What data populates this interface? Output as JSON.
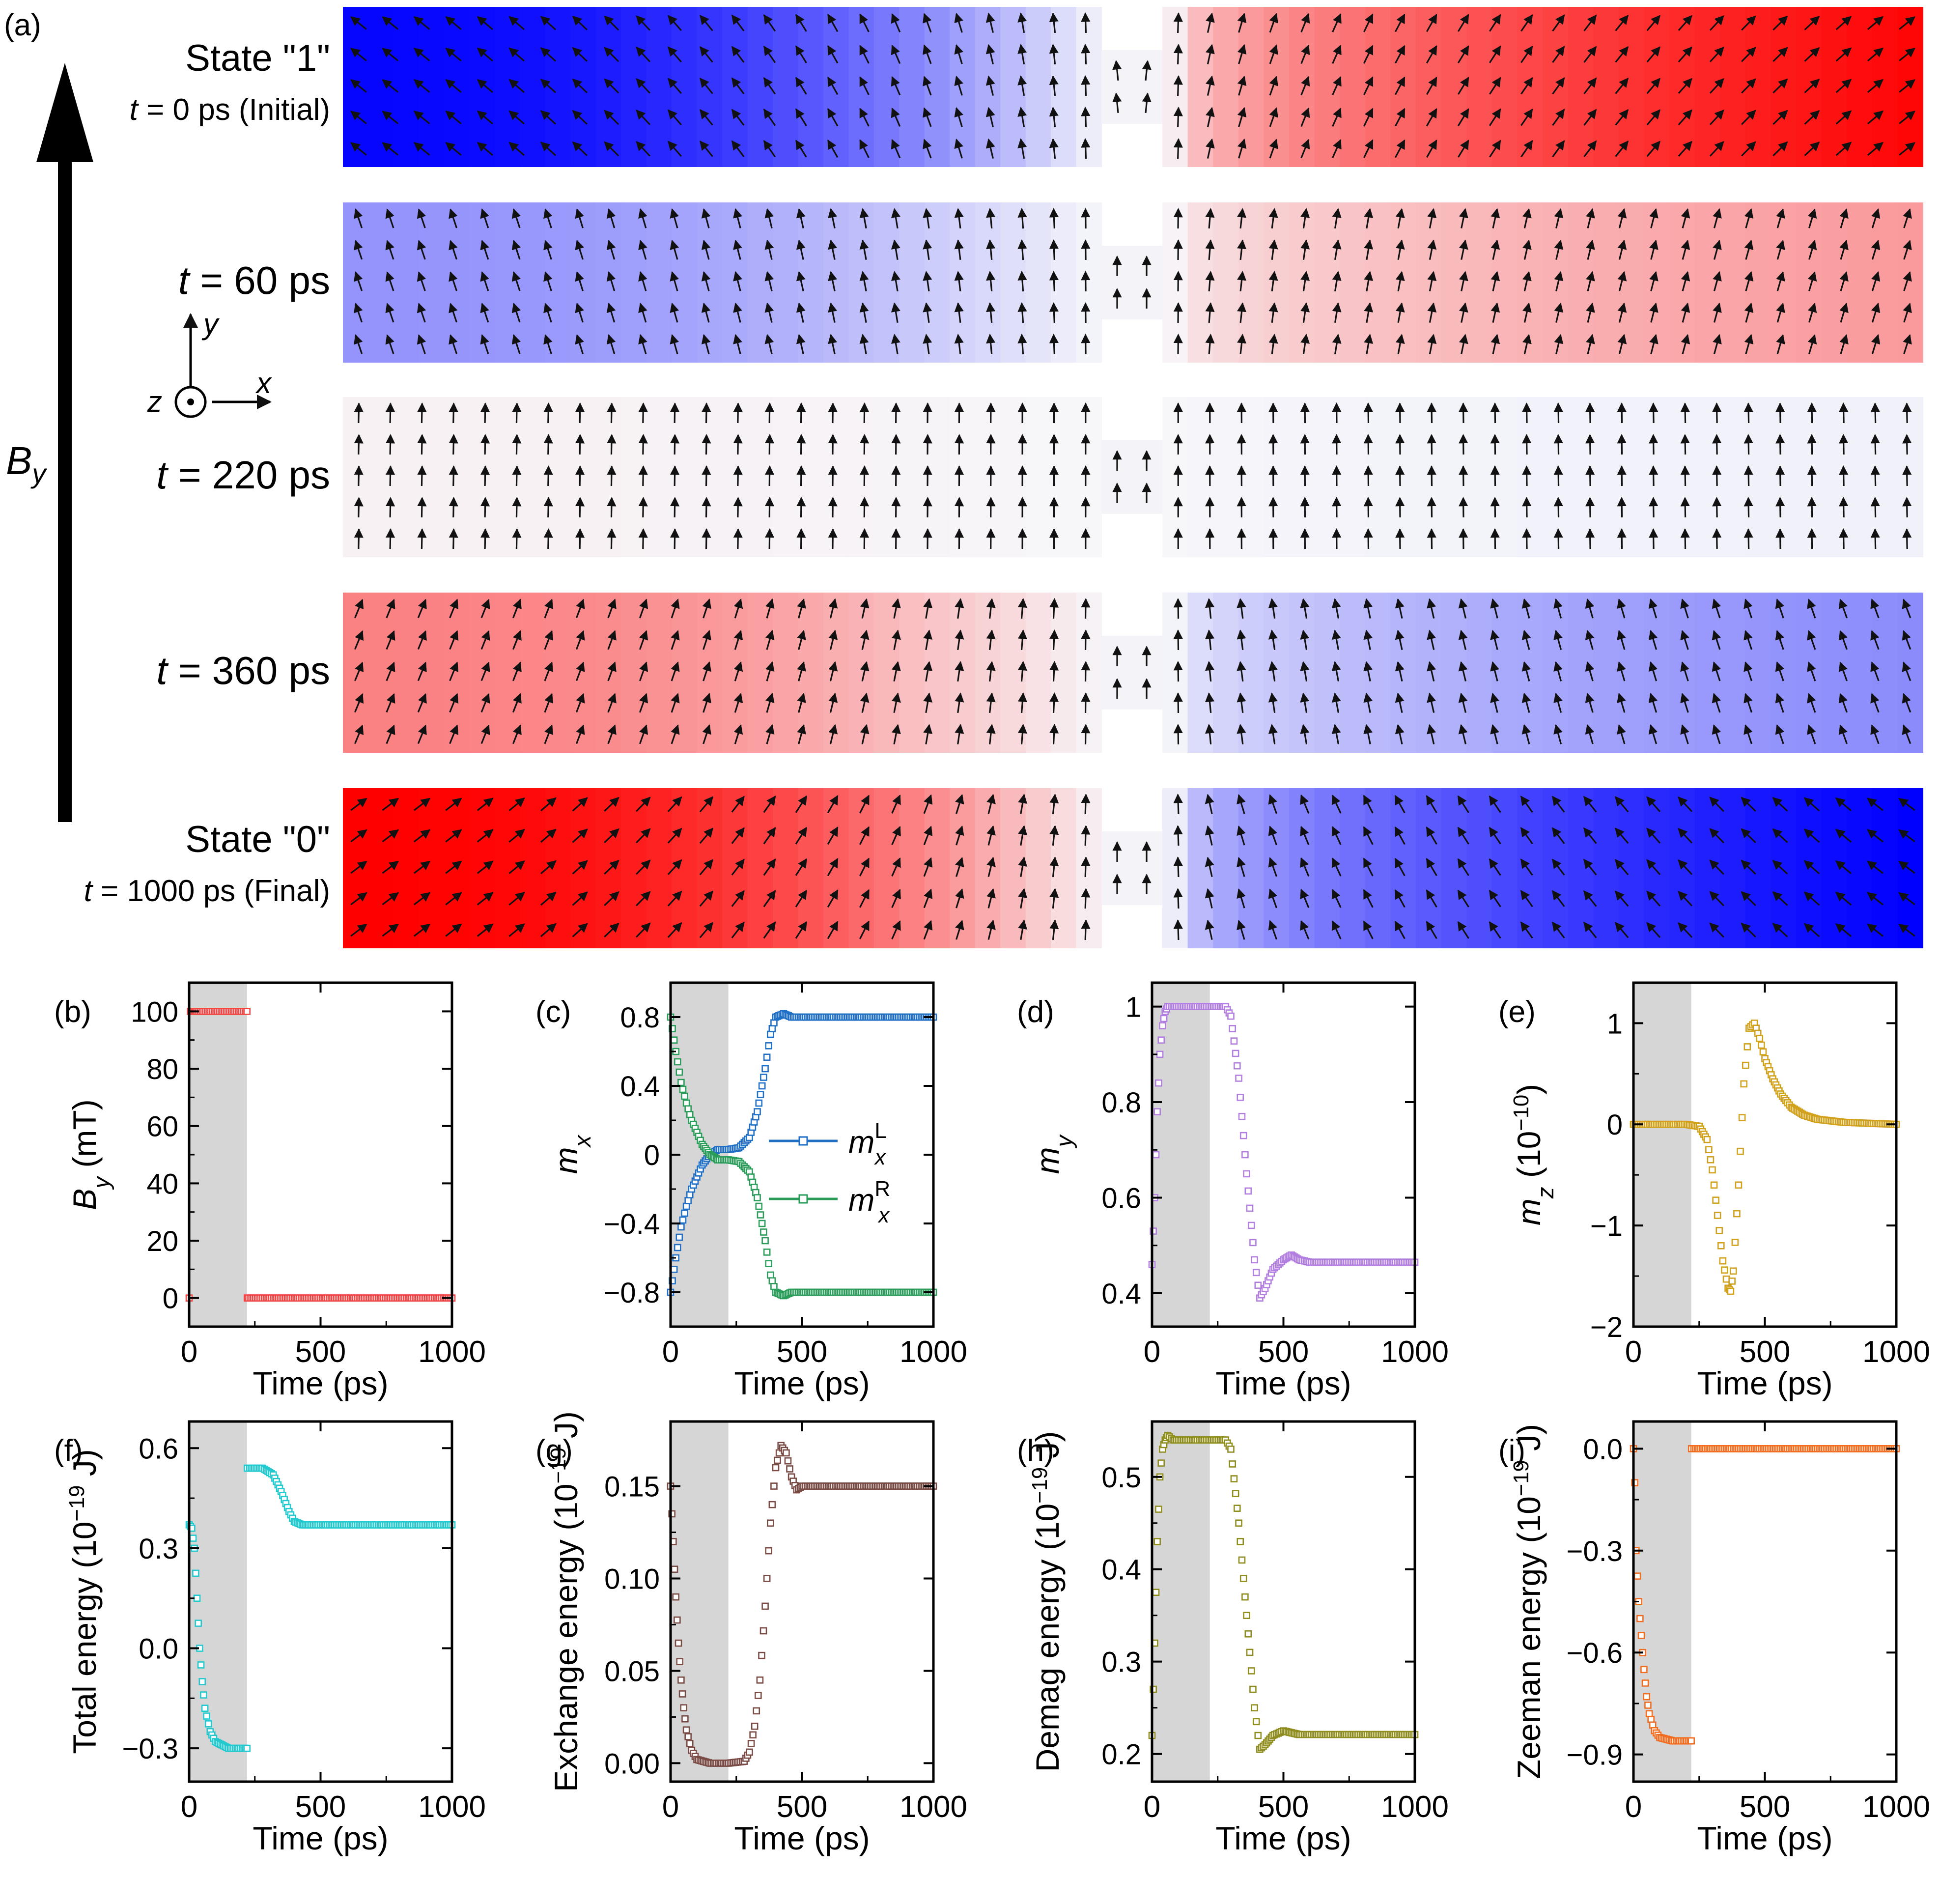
{
  "panel_a": {
    "label": "(a)",
    "field_label": "B",
    "field_sub": "y",
    "axes": {
      "x": "x",
      "y": "y",
      "z": "z"
    },
    "colors": {
      "neg": "#0000ff",
      "zero": "#f7f7fa",
      "pos": "#ff0000"
    },
    "rows": [
      {
        "title": "State \"1\"",
        "time_pre": "t",
        "time_post": " = 0 ps (Initial)",
        "mx_left": -0.78,
        "mx_right": 0.78,
        "neck_tilt": 0.1
      },
      {
        "title": "",
        "time_pre": "t",
        "time_post": " = 60 ps",
        "mx_left": -0.32,
        "mx_right": 0.3,
        "neck_tilt": 0.0
      },
      {
        "title": "",
        "time_pre": "t",
        "time_post": " = 220 ps",
        "mx_left": 0.02,
        "mx_right": -0.02,
        "neck_tilt": 0.0
      },
      {
        "title": "",
        "time_pre": "t",
        "time_post": " = 360 ps",
        "mx_left": 0.38,
        "mx_right": -0.35,
        "neck_tilt": 0.0
      },
      {
        "title": "State \"0\"",
        "time_pre": "t",
        "time_post": " = 1000 ps (Final)",
        "mx_left": 0.8,
        "mx_right": -0.8,
        "neck_tilt": 0.0
      }
    ]
  },
  "chart_data": [
    {
      "id": "b",
      "label": "(b)",
      "type": "scatter",
      "xlabel": "Time (ps)",
      "ylabel_parts": [
        [
          "B",
          "i"
        ],
        [
          "y",
          "sub-i"
        ],
        [
          " (mT)",
          ""
        ]
      ],
      "xlim": [
        0,
        1000
      ],
      "ylim": [
        -10,
        110
      ],
      "xticks": [
        0,
        500,
        1000
      ],
      "yticks": [
        0,
        20,
        40,
        60,
        80,
        100
      ],
      "shade": [
        0,
        220
      ],
      "color": "#f04646",
      "series": [
        {
          "name": "B_y",
          "x": [
            0,
            5,
            10,
            15,
            20,
            25,
            30,
            200,
            215,
            220,
            221,
            225,
            300,
            400,
            500,
            600,
            700,
            800,
            900,
            1000
          ],
          "y": [
            0,
            100,
            100,
            100,
            100,
            100,
            100,
            100,
            100,
            100,
            0,
            0,
            0,
            0,
            0,
            0,
            0,
            0,
            0,
            0
          ]
        }
      ]
    },
    {
      "id": "c",
      "label": "(c)",
      "type": "scatter",
      "xlabel": "Time (ps)",
      "ylabel_parts": [
        [
          "m",
          "i"
        ],
        [
          "x",
          "sub-i"
        ]
      ],
      "xlim": [
        0,
        1000
      ],
      "ylim": [
        -1.0,
        1.0
      ],
      "xticks": [
        0,
        500,
        1000
      ],
      "yticks": [
        -0.8,
        -0.4,
        0.0,
        0.4,
        0.8
      ],
      "shade": [
        0,
        220
      ],
      "legend": [
        {
          "sym": "m",
          "sup": "L",
          "sub": "x",
          "color": "#1f6fc6"
        },
        {
          "sym": "m",
          "sup": "R",
          "sub": "x",
          "color": "#2a9d5a"
        }
      ],
      "series": [
        {
          "name": "mxL",
          "color": "#1f6fc6",
          "x": [
            0,
            20,
            40,
            60,
            80,
            100,
            120,
            150,
            180,
            220,
            260,
            300,
            330,
            360,
            380,
            400,
            430,
            460,
            500,
            600,
            800,
            1000
          ],
          "y": [
            -0.8,
            -0.6,
            -0.42,
            -0.3,
            -0.2,
            -0.13,
            -0.06,
            0.0,
            0.03,
            0.03,
            0.04,
            0.1,
            0.25,
            0.5,
            0.7,
            0.8,
            0.82,
            0.8,
            0.8,
            0.8,
            0.8,
            0.8
          ]
        },
        {
          "name": "mxR",
          "color": "#2a9d5a",
          "x": [
            0,
            20,
            40,
            60,
            80,
            100,
            120,
            150,
            180,
            220,
            260,
            300,
            330,
            360,
            380,
            400,
            430,
            460,
            500,
            600,
            800,
            1000
          ],
          "y": [
            0.8,
            0.6,
            0.42,
            0.3,
            0.2,
            0.13,
            0.06,
            0.0,
            -0.03,
            -0.03,
            -0.04,
            -0.1,
            -0.25,
            -0.5,
            -0.7,
            -0.8,
            -0.82,
            -0.8,
            -0.8,
            -0.8,
            -0.8,
            -0.8
          ]
        }
      ]
    },
    {
      "id": "d",
      "label": "(d)",
      "type": "scatter",
      "xlabel": "Time (ps)",
      "ylabel_parts": [
        [
          "m",
          "i"
        ],
        [
          "y",
          "sub-i"
        ]
      ],
      "xlim": [
        0,
        1000
      ],
      "ylim": [
        0.33,
        1.05
      ],
      "xticks": [
        0,
        500,
        1000
      ],
      "yticks": [
        0.4,
        0.6,
        0.8,
        1.0
      ],
      "shade": [
        0,
        220
      ],
      "color": "#b27ee0",
      "series": [
        {
          "name": "my",
          "x": [
            0,
            10,
            20,
            30,
            40,
            50,
            60,
            80,
            100,
            200,
            280,
            300,
            330,
            360,
            390,
            410,
            430,
            460,
            500,
            530,
            560,
            600,
            700,
            800,
            1000
          ],
          "y": [
            0.46,
            0.6,
            0.78,
            0.9,
            0.96,
            0.99,
            1.0,
            1.0,
            1.0,
            1.0,
            1.0,
            0.98,
            0.85,
            0.65,
            0.47,
            0.39,
            0.41,
            0.45,
            0.47,
            0.48,
            0.47,
            0.465,
            0.465,
            0.465,
            0.465
          ]
        }
      ]
    },
    {
      "id": "e",
      "label": "(e)",
      "type": "scatter",
      "xlabel": "Time (ps)",
      "ylabel_parts": [
        [
          "m",
          "i"
        ],
        [
          "z",
          "sub-i"
        ],
        [
          " (10",
          ""
        ],
        [
          "−10",
          "sup"
        ],
        [
          ")",
          ""
        ]
      ],
      "xlim": [
        0,
        1000
      ],
      "ylim": [
        -2.0,
        1.4
      ],
      "xticks": [
        0,
        500,
        1000
      ],
      "yticks": [
        -2,
        -1,
        0,
        1
      ],
      "shade": [
        0,
        220
      ],
      "color": "#d1a11c",
      "series": [
        {
          "name": "mz",
          "x": [
            0,
            100,
            200,
            250,
            280,
            300,
            320,
            340,
            360,
            370,
            380,
            400,
            420,
            440,
            460,
            480,
            500,
            530,
            560,
            600,
            650,
            700,
            800,
            900,
            1000
          ],
          "y": [
            0,
            0,
            0,
            -0.02,
            -0.15,
            -0.45,
            -0.9,
            -1.35,
            -1.62,
            -1.65,
            -1.45,
            -0.6,
            0.4,
            0.95,
            1.0,
            0.85,
            0.65,
            0.45,
            0.3,
            0.17,
            0.09,
            0.05,
            0.02,
            0.01,
            0.0
          ]
        }
      ]
    },
    {
      "id": "f",
      "label": "(f)",
      "type": "scatter",
      "xlabel": "Time (ps)",
      "ylabel_parts": [
        [
          "Total energy (10",
          ""
        ],
        [
          "−19",
          "sup"
        ],
        [
          " J)",
          ""
        ]
      ],
      "xlim": [
        0,
        1000
      ],
      "ylim": [
        -0.4,
        0.68
      ],
      "xticks": [
        0,
        500,
        1000
      ],
      "yticks": [
        -0.3,
        0.0,
        0.3,
        0.6
      ],
      "yfmt": 1,
      "shade": [
        0,
        220
      ],
      "color": "#22c9cf",
      "series": [
        {
          "name": "E_total",
          "x": [
            0,
            10,
            20,
            30,
            40,
            50,
            60,
            80,
            100,
            150,
            215,
            220,
            221,
            230,
            280,
            320,
            350,
            380,
            400,
            430,
            460,
            500,
            600,
            800,
            1000
          ],
          "y": [
            0.37,
            0.36,
            0.3,
            0.15,
            0.0,
            -0.1,
            -0.18,
            -0.25,
            -0.28,
            -0.3,
            -0.3,
            -0.3,
            0.54,
            0.54,
            0.54,
            0.52,
            0.47,
            0.41,
            0.38,
            0.37,
            0.37,
            0.37,
            0.37,
            0.37,
            0.37
          ]
        }
      ]
    },
    {
      "id": "g",
      "label": "(g)",
      "type": "scatter",
      "xlabel": "Time (ps)",
      "ylabel_parts": [
        [
          "Exchange energy (10",
          ""
        ],
        [
          "−19",
          "sup"
        ],
        [
          " J)",
          ""
        ]
      ],
      "xlim": [
        0,
        1000
      ],
      "ylim": [
        -0.01,
        0.185
      ],
      "xticks": [
        0,
        500,
        1000
      ],
      "yticks": [
        0.0,
        0.05,
        0.1,
        0.15
      ],
      "yfmt": 2,
      "shade": [
        0,
        220
      ],
      "color": "#7a4b45",
      "series": [
        {
          "name": "E_exch",
          "x": [
            0,
            10,
            20,
            30,
            40,
            50,
            60,
            80,
            100,
            150,
            220,
            280,
            300,
            320,
            340,
            360,
            380,
            400,
            420,
            440,
            460,
            480,
            500,
            600,
            800,
            1000
          ],
          "y": [
            0.15,
            0.12,
            0.09,
            0.065,
            0.045,
            0.03,
            0.018,
            0.007,
            0.002,
            0.0,
            0.0,
            0.001,
            0.006,
            0.02,
            0.045,
            0.085,
            0.13,
            0.16,
            0.172,
            0.168,
            0.155,
            0.148,
            0.15,
            0.15,
            0.15,
            0.15
          ]
        }
      ]
    },
    {
      "id": "h",
      "label": "(h)",
      "type": "scatter",
      "xlabel": "Time (ps)",
      "ylabel_parts": [
        [
          "Demag energy (10",
          ""
        ],
        [
          "−19",
          "sup"
        ],
        [
          " J)",
          ""
        ]
      ],
      "xlim": [
        0,
        1000
      ],
      "ylim": [
        0.17,
        0.56
      ],
      "xticks": [
        0,
        500,
        1000
      ],
      "yticks": [
        0.2,
        0.3,
        0.4,
        0.5
      ],
      "yfmt": 1,
      "shade": [
        0,
        220
      ],
      "color": "#8f8d1e",
      "series": [
        {
          "name": "E_demag",
          "x": [
            0,
            10,
            20,
            30,
            40,
            50,
            60,
            80,
            100,
            200,
            280,
            300,
            330,
            360,
            390,
            410,
            430,
            460,
            500,
            530,
            560,
            600,
            700,
            800,
            1000
          ],
          "y": [
            0.22,
            0.32,
            0.43,
            0.5,
            0.53,
            0.54,
            0.545,
            0.54,
            0.54,
            0.54,
            0.54,
            0.53,
            0.45,
            0.35,
            0.25,
            0.205,
            0.21,
            0.22,
            0.225,
            0.223,
            0.221,
            0.221,
            0.221,
            0.221,
            0.221
          ]
        }
      ]
    },
    {
      "id": "i",
      "label": "(i)",
      "type": "scatter",
      "xlabel": "Time (ps)",
      "ylabel_parts": [
        [
          "Zeeman energy (10",
          ""
        ],
        [
          "−19",
          "sup"
        ],
        [
          " J)",
          ""
        ]
      ],
      "xlim": [
        0,
        1000
      ],
      "ylim": [
        -0.98,
        0.08
      ],
      "xticks": [
        0,
        500,
        1000
      ],
      "yticks": [
        -0.9,
        -0.6,
        -0.3,
        0.0
      ],
      "yfmt": 1,
      "shade": [
        0,
        220
      ],
      "color": "#f36d21",
      "series": [
        {
          "name": "E_zeeman",
          "x": [
            0,
            5,
            10,
            20,
            30,
            40,
            50,
            60,
            80,
            100,
            150,
            215,
            220,
            221,
            230,
            300,
            400,
            500,
            600,
            800,
            1000
          ],
          "y": [
            0.0,
            -0.1,
            -0.3,
            -0.45,
            -0.55,
            -0.65,
            -0.73,
            -0.78,
            -0.83,
            -0.85,
            -0.86,
            -0.86,
            -0.86,
            0.0,
            0.0,
            0.0,
            0.0,
            0.0,
            0.0,
            0.0,
            0.0
          ]
        }
      ]
    }
  ]
}
